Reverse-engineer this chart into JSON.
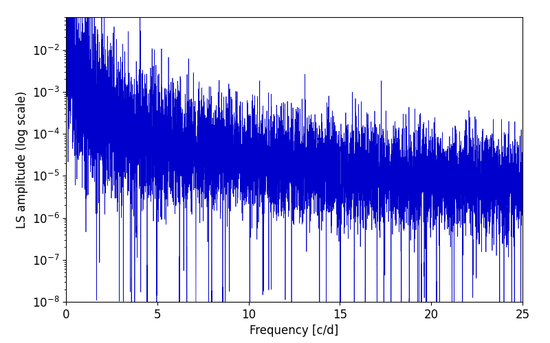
{
  "xlabel": "Frequency [c/d]",
  "ylabel": "LS amplitude (log scale)",
  "xlim": [
    0,
    25
  ],
  "ylim": [
    1e-08,
    0.06
  ],
  "line_color": "#0000cc",
  "background_color": "#ffffff",
  "freq_min": 0.0,
  "freq_max": 25.0,
  "n_points": 8000,
  "seed": 12345,
  "tick_labelsize": 12,
  "label_fontsize": 12,
  "linewidth": 0.5
}
